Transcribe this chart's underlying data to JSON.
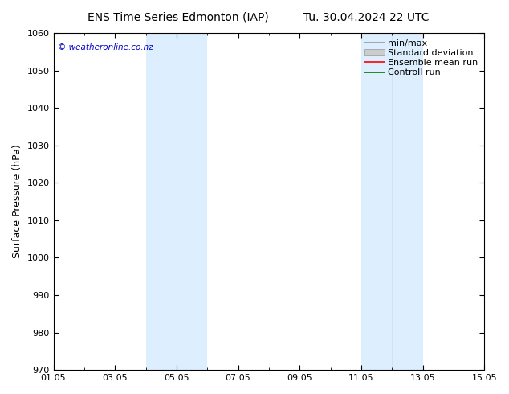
{
  "title1": "ENS Time Series Edmonton (IAP)",
  "title2": "Tu. 30.04.2024 22 UTC",
  "ylabel": "Surface Pressure (hPa)",
  "ylim": [
    970,
    1060
  ],
  "yticks": [
    970,
    980,
    990,
    1000,
    1010,
    1020,
    1030,
    1040,
    1050,
    1060
  ],
  "xticks_labels": [
    "01.05",
    "03.05",
    "05.05",
    "07.05",
    "09.05",
    "11.05",
    "13.05",
    "15.05"
  ],
  "xtick_values": [
    0,
    2,
    4,
    6,
    8,
    10,
    12,
    14
  ],
  "xlim": [
    0,
    14
  ],
  "shaded_bands": [
    {
      "x_start": 3.0,
      "x_end": 4.0
    },
    {
      "x_start": 4.0,
      "x_end": 5.0
    },
    {
      "x_start": 10.0,
      "x_end": 11.0
    },
    {
      "x_start": 11.0,
      "x_end": 12.0
    }
  ],
  "shade_color": "#ddeeff",
  "shade_edge_color": "#c8dff0",
  "watermark": "© weatheronline.co.nz",
  "watermark_color": "#0000cc",
  "legend_entries": [
    {
      "label": "min/max",
      "color": "#999999",
      "lw": 1.2,
      "type": "line"
    },
    {
      "label": "Standard deviation",
      "color": "#cccccc",
      "lw": 6,
      "type": "band"
    },
    {
      "label": "Ensemble mean run",
      "color": "#ff0000",
      "lw": 1.2,
      "type": "line"
    },
    {
      "label": "Controll run",
      "color": "#007700",
      "lw": 1.2,
      "type": "line"
    }
  ],
  "bg_color": "#ffffff",
  "title_fontsize": 10,
  "axis_label_fontsize": 9,
  "tick_fontsize": 8,
  "legend_fontsize": 8
}
